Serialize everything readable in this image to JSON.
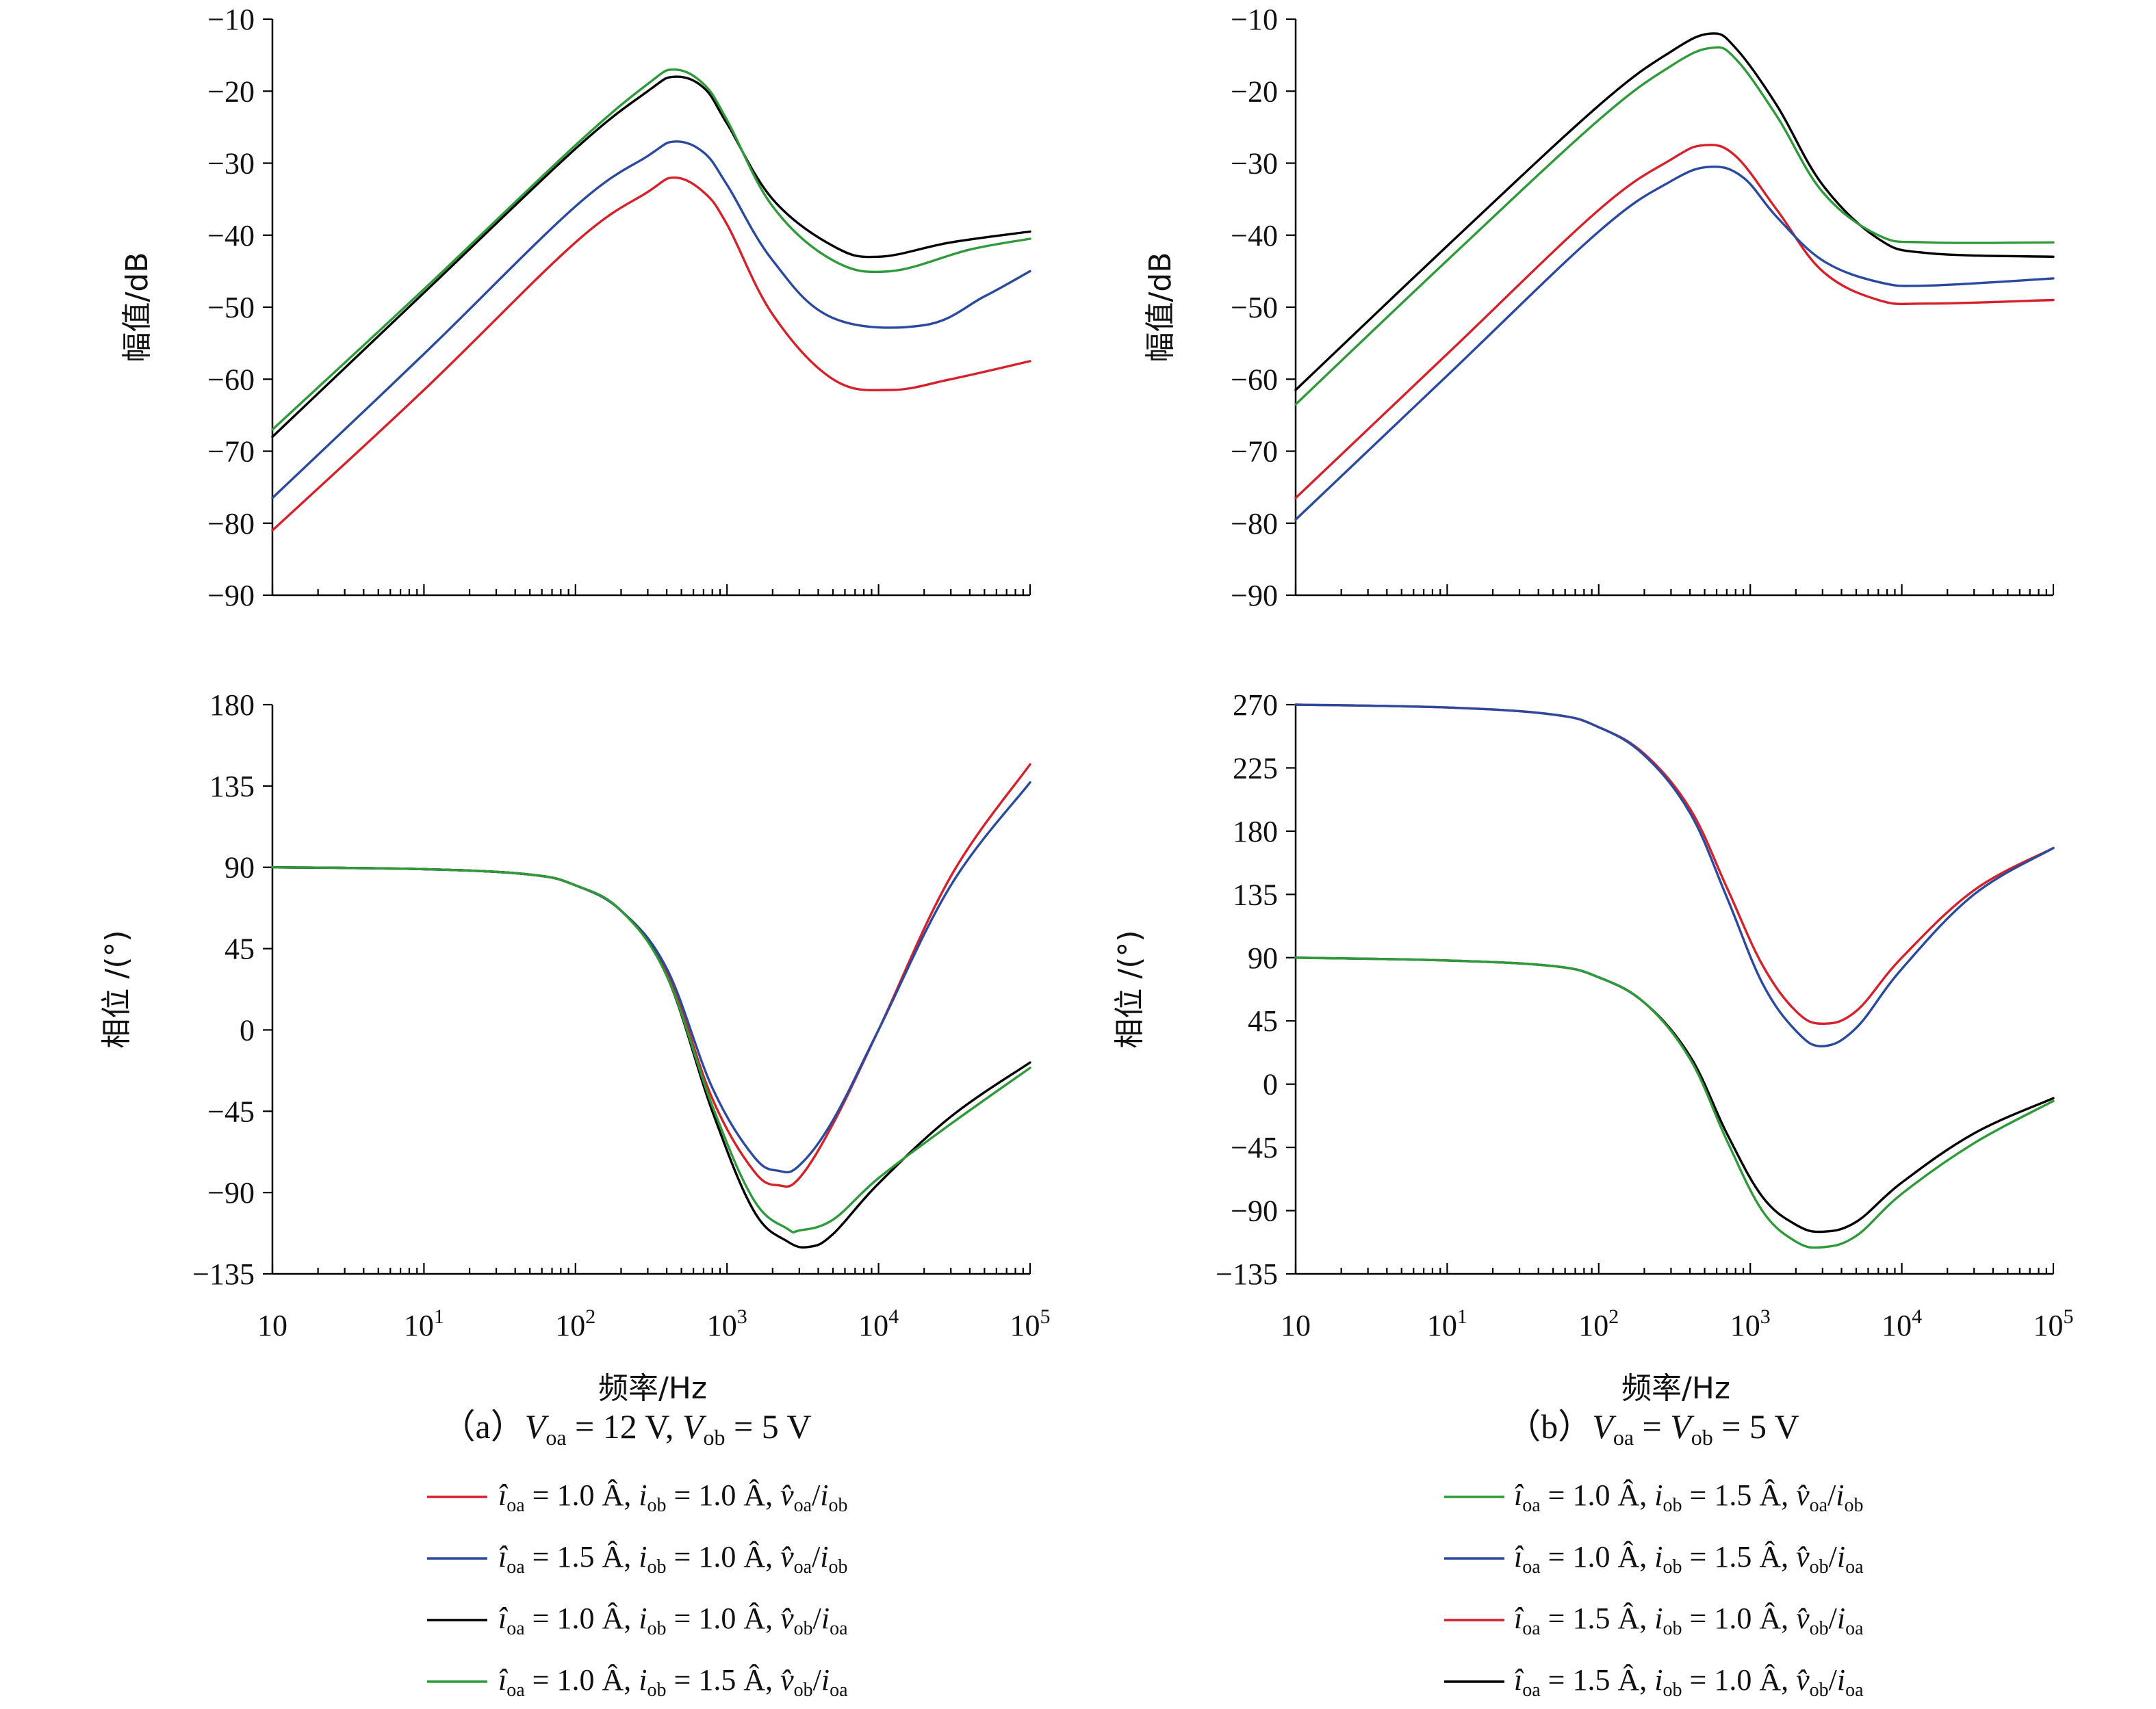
{
  "colors": {
    "red": "#d6202a",
    "blue": "#2a4aa0",
    "black": "#000000",
    "green": "#2e9a3a"
  },
  "panel_a": {
    "caption_open": "（a）",
    "caption_v1": "V",
    "caption_s1": "oa",
    "caption_mid": " = 12 V, ",
    "caption_v2": "V",
    "caption_s2": "ob",
    "caption_end": " = 5 V",
    "legend": [
      {
        "color": "red",
        "i1": "î",
        "s1": "oa",
        "t1": " = 1.0 Â, ",
        "i2": "i",
        "s2": "ob",
        "t2": " = 1.0 Â, ",
        "v": "v̂",
        "s3": "oa",
        "t3": "/",
        "i3": "i",
        "s4": "ob"
      },
      {
        "color": "blue",
        "i1": "î",
        "s1": "oa",
        "t1": " = 1.5 Â, ",
        "i2": "i",
        "s2": "ob",
        "t2": " = 1.0 Â, ",
        "v": "v̂",
        "s3": "oa",
        "t3": "/",
        "i3": "i",
        "s4": "ob"
      },
      {
        "color": "black",
        "i1": "î",
        "s1": "oa",
        "t1": " = 1.0 Â, ",
        "i2": "i",
        "s2": "ob",
        "t2": " = 1.0 Â, ",
        "v": "v̂",
        "s3": "ob",
        "t3": "/",
        "i3": "i",
        "s4": "oa"
      },
      {
        "color": "green",
        "i1": "î",
        "s1": "oa",
        "t1": " = 1.0 Â, ",
        "i2": "i",
        "s2": "ob",
        "t2": " = 1.5 Â, ",
        "v": "v̂",
        "s3": "ob",
        "t3": "/",
        "i3": "i",
        "s4": "oa"
      }
    ]
  },
  "panel_b": {
    "caption_open": "（b）",
    "caption_v1": "V",
    "caption_s1": "oa",
    "caption_mid": " = ",
    "caption_v2": "V",
    "caption_s2": "ob",
    "caption_end": " = 5 V",
    "legend": [
      {
        "color": "green",
        "i1": "î",
        "s1": "oa",
        "t1": " = 1.0 Â, ",
        "i2": "i",
        "s2": "ob",
        "t2": " = 1.5 Â, ",
        "v": "v̂",
        "s3": "oa",
        "t3": "/",
        "i3": "i",
        "s4": "ob"
      },
      {
        "color": "blue",
        "i1": "î",
        "s1": "oa",
        "t1": " = 1.0 Â, ",
        "i2": "i",
        "s2": "ob",
        "t2": " = 1.5 Â, ",
        "v": "v̂",
        "s3": "ob",
        "t3": "/",
        "i3": "i",
        "s4": "oa"
      },
      {
        "color": "red",
        "i1": "î",
        "s1": "oa",
        "t1": " = 1.5 Â, ",
        "i2": "i",
        "s2": "ob",
        "t2": " = 1.0 Â, ",
        "v": "v̂",
        "s3": "ob",
        "t3": "/",
        "i3": "i",
        "s4": "oa"
      },
      {
        "color": "black",
        "i1": "î",
        "s1": "oa",
        "t1": " = 1.5 Â, ",
        "i2": "i",
        "s2": "ob",
        "t2": " = 1.0 Â, ",
        "v": "v̂",
        "s3": "ob",
        "t3": "/",
        "i3": "i",
        "s4": "oa"
      }
    ]
  },
  "chart_data": [
    {
      "id": "a_mag",
      "type": "line",
      "ylabel": "幅值/dB",
      "xlabel": "",
      "xscale": "log",
      "xlim": [
        1,
        100000
      ],
      "ylim": [
        -90,
        -10
      ],
      "yticks": [
        -10,
        -20,
        -30,
        -40,
        -50,
        -60,
        -70,
        -80,
        -90
      ],
      "series": [
        {
          "color": "red",
          "x": [
            1,
            10,
            100,
            300,
            450,
            700,
            1000,
            2000,
            5000,
            12000,
            30000,
            100000
          ],
          "y": [
            -81,
            -61.5,
            -41,
            -34,
            -32,
            -34,
            -38.5,
            -51,
            -60,
            -61.5,
            -60,
            -57.5
          ]
        },
        {
          "color": "blue",
          "x": [
            1,
            10,
            100,
            300,
            450,
            700,
            1000,
            2000,
            5000,
            20000,
            50000,
            100000
          ],
          "y": [
            -76.5,
            -56.5,
            -36,
            -29,
            -27,
            -28.5,
            -33,
            -43.5,
            -51.5,
            -52.5,
            -48.5,
            -45
          ]
        },
        {
          "color": "black",
          "x": [
            1,
            10,
            100,
            300,
            450,
            700,
            1000,
            2000,
            5000,
            10000,
            30000,
            100000
          ],
          "y": [
            -68,
            -48,
            -28,
            -20,
            -18,
            -19.5,
            -24.5,
            -35,
            -41.5,
            -43,
            -41,
            -39.5
          ]
        },
        {
          "color": "green",
          "x": [
            1,
            10,
            100,
            300,
            450,
            700,
            1000,
            2000,
            5000,
            12000,
            40000,
            100000
          ],
          "y": [
            -67,
            -47.5,
            -27.5,
            -19,
            -17,
            -19,
            -24,
            -36,
            -43.5,
            -45,
            -42,
            -40.5
          ]
        }
      ]
    },
    {
      "id": "b_mag",
      "type": "line",
      "ylabel": "幅值/dB",
      "xlabel": "",
      "xscale": "log",
      "xlim": [
        1,
        100000
      ],
      "ylim": [
        -90,
        -10
      ],
      "yticks": [
        -10,
        -20,
        -30,
        -40,
        -50,
        -60,
        -70,
        -80,
        -90
      ],
      "series": [
        {
          "color": "black",
          "x": [
            1,
            10,
            100,
            300,
            550,
            800,
            1500,
            3000,
            7000,
            15000,
            100000
          ],
          "y": [
            -61.5,
            -41.5,
            -22,
            -14.5,
            -12,
            -14,
            -22,
            -33,
            -40.5,
            -42.5,
            -43
          ]
        },
        {
          "color": "green",
          "x": [
            1,
            10,
            100,
            300,
            550,
            800,
            1500,
            3000,
            7000,
            15000,
            100000
          ],
          "y": [
            -63.5,
            -43.5,
            -24,
            -16.5,
            -14,
            -15.5,
            -23.5,
            -34,
            -40,
            -41,
            -41
          ]
        },
        {
          "color": "red",
          "x": [
            1,
            10,
            100,
            300,
            500,
            800,
            1500,
            3000,
            7000,
            15000,
            100000
          ],
          "y": [
            -76.5,
            -56.5,
            -36.5,
            -29.5,
            -27.5,
            -29,
            -36.5,
            -45,
            -49,
            -49.5,
            -49
          ]
        },
        {
          "color": "blue",
          "x": [
            1,
            10,
            100,
            300,
            550,
            900,
            1500,
            3000,
            7000,
            15000,
            100000
          ],
          "y": [
            -79.5,
            -59.5,
            -39.5,
            -32.5,
            -30.5,
            -32,
            -37.5,
            -43.5,
            -46.5,
            -47,
            -46
          ]
        }
      ]
    },
    {
      "id": "a_phase",
      "type": "line",
      "ylabel": "相位 /(°)",
      "xlabel": "频率/Hz",
      "xscale": "log",
      "xlim": [
        1,
        100000
      ],
      "ylim": [
        -135,
        180
      ],
      "yticks": [
        180,
        135,
        90,
        45,
        0,
        -45,
        -90,
        -135
      ],
      "xtick_labels": [
        "10",
        "10¹",
        "10²",
        "10³",
        "10⁴",
        "10⁵"
      ],
      "series": [
        {
          "color": "red",
          "x": [
            1,
            10,
            50,
            100,
            200,
            400,
            800,
            1500,
            2200,
            3000,
            5000,
            10000,
            30000,
            100000
          ],
          "y": [
            90,
            89,
            86,
            80,
            66,
            32,
            -38,
            -78,
            -86,
            -82,
            -52,
            0,
            85,
            147
          ]
        },
        {
          "color": "blue",
          "x": [
            1,
            10,
            50,
            100,
            200,
            400,
            800,
            1500,
            2200,
            3000,
            5000,
            10000,
            30000,
            100000
          ],
          "y": [
            90,
            89,
            86,
            80,
            66,
            34,
            -32,
            -70,
            -78,
            -75,
            -50,
            0,
            80,
            137
          ]
        },
        {
          "color": "black",
          "x": [
            1,
            10,
            50,
            100,
            200,
            400,
            800,
            1500,
            2500,
            3500,
            5000,
            10000,
            30000,
            100000
          ],
          "y": [
            90,
            89,
            86,
            80,
            66,
            30,
            -45,
            -100,
            -117,
            -120,
            -113,
            -85,
            -48,
            -18
          ]
        },
        {
          "color": "green",
          "x": [
            1,
            10,
            50,
            100,
            200,
            400,
            800,
            1500,
            2500,
            3000,
            5000,
            10000,
            30000,
            100000
          ],
          "y": [
            90,
            89,
            86,
            80,
            66,
            30,
            -42,
            -94,
            -110,
            -111,
            -105,
            -82,
            -52,
            -21
          ]
        }
      ]
    },
    {
      "id": "b_phase",
      "type": "line",
      "ylabel": "相位 /(°)",
      "xlabel": "频率/Hz",
      "xscale": "log",
      "xlim": [
        1,
        100000
      ],
      "ylim": [
        -135,
        270
      ],
      "yticks": [
        270,
        225,
        180,
        135,
        90,
        45,
        0,
        -45,
        -90,
        -135
      ],
      "xtick_labels": [
        "10",
        "10¹",
        "10²",
        "10³",
        "10⁴",
        "10⁵"
      ],
      "series": [
        {
          "color": "red",
          "x": [
            1,
            10,
            50,
            100,
            200,
            400,
            700,
            1200,
            2000,
            3000,
            5000,
            10000,
            30000,
            100000
          ],
          "y": [
            270,
            268,
            263,
            254,
            235,
            196,
            140,
            85,
            52,
            43,
            52,
            90,
            138,
            168
          ]
        },
        {
          "color": "blue",
          "x": [
            1,
            10,
            50,
            100,
            200,
            400,
            700,
            1200,
            2000,
            3000,
            5000,
            10000,
            30000,
            100000
          ],
          "y": [
            270,
            268,
            263,
            254,
            234,
            193,
            133,
            72,
            38,
            27,
            40,
            82,
            135,
            168
          ]
        },
        {
          "color": "black",
          "x": [
            1,
            10,
            50,
            100,
            200,
            400,
            700,
            1200,
            2000,
            3000,
            5000,
            10000,
            30000,
            100000
          ],
          "y": [
            90,
            88,
            84,
            76,
            58,
            20,
            -35,
            -80,
            -100,
            -105,
            -98,
            -70,
            -35,
            -10
          ]
        },
        {
          "color": "green",
          "x": [
            1,
            10,
            50,
            100,
            200,
            400,
            700,
            1200,
            2000,
            3000,
            5000,
            10000,
            30000,
            100000
          ],
          "y": [
            90,
            88,
            84,
            76,
            58,
            18,
            -40,
            -90,
            -112,
            -116,
            -108,
            -78,
            -42,
            -12
          ]
        }
      ]
    }
  ]
}
